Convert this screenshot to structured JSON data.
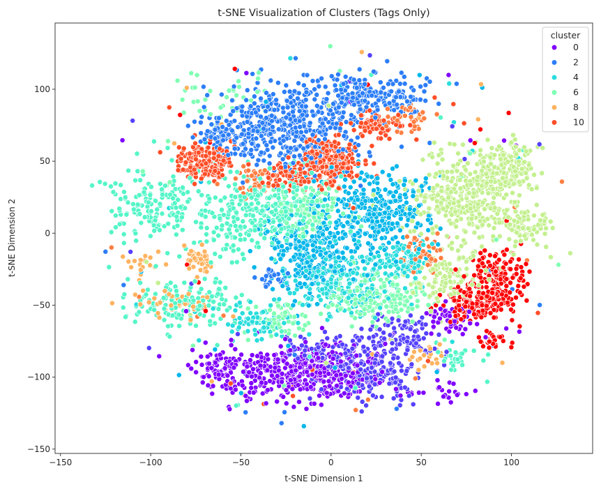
{
  "chart_data": {
    "type": "scatter",
    "title": "t-SNE Visualization of Clusters (Tags Only)",
    "xlabel": "t-SNE Dimension 1",
    "ylabel": "t-SNE Dimension 2",
    "xlim": [
      -153,
      145
    ],
    "ylim": [
      -153,
      146
    ],
    "xticks": [
      -150,
      -100,
      -50,
      0,
      50,
      100
    ],
    "yticks": [
      -150,
      -100,
      -50,
      0,
      50,
      100
    ],
    "grid": false,
    "legend": {
      "title": "cluster",
      "placement": "top-right",
      "entries": [
        {
          "label": "0",
          "color": "#8000ff"
        },
        {
          "label": "2",
          "color": "#2c7ef7"
        },
        {
          "label": "4",
          "color": "#2adddd"
        },
        {
          "label": "6",
          "color": "#80ffb4"
        },
        {
          "label": "8",
          "color": "#ffb360"
        },
        {
          "label": "10",
          "color": "#ff4e27"
        }
      ]
    },
    "palette": {
      "0": "#8000ff",
      "1": "#5641fd",
      "2": "#2c7ef7",
      "3": "#02b7eb",
      "4": "#2adddd",
      "5": "#55f5c8",
      "6": "#80ffb4",
      "7": "#c4f090",
      "8": "#ffb360",
      "9": "#ff7e41",
      "10": "#ff4e27",
      "11": "#ff0000"
    },
    "clusters": [
      {
        "cluster": "0",
        "regions": [
          {
            "cx": -25,
            "cy": -100,
            "rx": 32,
            "ry": 18,
            "n": 260
          },
          {
            "cx": 0,
            "cy": -95,
            "rx": 25,
            "ry": 16,
            "n": 160
          },
          {
            "cx": -60,
            "cy": -95,
            "rx": 16,
            "ry": 12,
            "n": 70
          },
          {
            "cx": 65,
            "cy": -60,
            "rx": 14,
            "ry": 12,
            "n": 50
          },
          {
            "cx": 60,
            "cy": -110,
            "rx": 20,
            "ry": 8,
            "n": 25
          }
        ]
      },
      {
        "cluster": "1",
        "regions": [
          {
            "cx": 20,
            "cy": -95,
            "rx": 25,
            "ry": 18,
            "n": 220
          },
          {
            "cx": 40,
            "cy": -70,
            "rx": 18,
            "ry": 14,
            "n": 100
          },
          {
            "cx": -10,
            "cy": -80,
            "rx": 15,
            "ry": 10,
            "n": 60
          }
        ]
      },
      {
        "cluster": "2",
        "regions": [
          {
            "cx": -25,
            "cy": 75,
            "rx": 35,
            "ry": 30,
            "n": 480
          },
          {
            "cx": 20,
            "cy": 95,
            "rx": 32,
            "ry": 15,
            "n": 220
          },
          {
            "cx": -60,
            "cy": 70,
            "rx": 15,
            "ry": 12,
            "n": 70
          },
          {
            "cx": -30,
            "cy": -30,
            "rx": 8,
            "ry": 6,
            "n": 25
          }
        ]
      },
      {
        "cluster": "3",
        "regions": [
          {
            "cx": 25,
            "cy": 15,
            "rx": 26,
            "ry": 25,
            "n": 360
          },
          {
            "cx": -10,
            "cy": -15,
            "rx": 25,
            "ry": 25,
            "n": 260
          }
        ]
      },
      {
        "cluster": "4",
        "regions": [
          {
            "cx": 5,
            "cy": -35,
            "rx": 26,
            "ry": 20,
            "n": 230
          },
          {
            "cx": 40,
            "cy": -20,
            "rx": 16,
            "ry": 12,
            "n": 90
          },
          {
            "cx": -40,
            "cy": -60,
            "rx": 15,
            "ry": 10,
            "n": 70
          }
        ]
      },
      {
        "cluster": "5",
        "regions": [
          {
            "cx": -100,
            "cy": 20,
            "rx": 22,
            "ry": 25,
            "n": 150
          },
          {
            "cx": -50,
            "cy": 10,
            "rx": 28,
            "ry": 25,
            "n": 210
          },
          {
            "cx": -80,
            "cy": -50,
            "rx": 28,
            "ry": 18,
            "n": 150
          },
          {
            "cx": -20,
            "cy": 20,
            "rx": 20,
            "ry": 22,
            "n": 120
          },
          {
            "cx": 70,
            "cy": -85,
            "rx": 12,
            "ry": 8,
            "n": 30
          }
        ]
      },
      {
        "cluster": "6",
        "regions": [
          {
            "cx": 25,
            "cy": -45,
            "rx": 25,
            "ry": 15,
            "n": 170
          },
          {
            "cx": -10,
            "cy": 15,
            "rx": 20,
            "ry": 18,
            "n": 110
          },
          {
            "cx": -25,
            "cy": -60,
            "rx": 15,
            "ry": 10,
            "n": 50
          },
          {
            "cx": -60,
            "cy": 95,
            "rx": 25,
            "ry": 20,
            "n": 40
          }
        ]
      },
      {
        "cluster": "7",
        "regions": [
          {
            "cx": 75,
            "cy": 25,
            "rx": 30,
            "ry": 28,
            "n": 350
          },
          {
            "cx": 95,
            "cy": 45,
            "rx": 18,
            "ry": 18,
            "n": 160
          },
          {
            "cx": 105,
            "cy": 5,
            "rx": 15,
            "ry": 12,
            "n": 80
          },
          {
            "cx": 65,
            "cy": -30,
            "rx": 20,
            "ry": 16,
            "n": 120
          }
        ]
      },
      {
        "cluster": "8",
        "regions": [
          {
            "cx": -73,
            "cy": -18,
            "rx": 8,
            "ry": 9,
            "n": 45
          },
          {
            "cx": -85,
            "cy": -48,
            "rx": 20,
            "ry": 10,
            "n": 40
          },
          {
            "cx": 52,
            "cy": -85,
            "rx": 8,
            "ry": 6,
            "n": 22
          },
          {
            "cx": -105,
            "cy": -20,
            "rx": 8,
            "ry": 8,
            "n": 18
          }
        ]
      },
      {
        "cluster": "9",
        "regions": [
          {
            "cx": 50,
            "cy": -15,
            "rx": 10,
            "ry": 12,
            "n": 50
          },
          {
            "cx": -45,
            "cy": 35,
            "rx": 12,
            "ry": 10,
            "n": 40
          },
          {
            "cx": 40,
            "cy": 80,
            "rx": 15,
            "ry": 10,
            "n": 40
          }
        ]
      },
      {
        "cluster": "10",
        "regions": [
          {
            "cx": -70,
            "cy": 50,
            "rx": 15,
            "ry": 12,
            "n": 170
          },
          {
            "cx": 0,
            "cy": 50,
            "rx": 16,
            "ry": 16,
            "n": 220
          },
          {
            "cx": -25,
            "cy": 40,
            "rx": 14,
            "ry": 10,
            "n": 70
          },
          {
            "cx": 25,
            "cy": 75,
            "rx": 15,
            "ry": 10,
            "n": 60
          }
        ]
      },
      {
        "cluster": "11",
        "regions": [
          {
            "cx": 90,
            "cy": -35,
            "rx": 15,
            "ry": 22,
            "n": 220
          },
          {
            "cx": 75,
            "cy": -50,
            "rx": 12,
            "ry": 10,
            "n": 80
          },
          {
            "cx": 90,
            "cy": -75,
            "rx": 8,
            "ry": 5,
            "n": 25
          }
        ]
      }
    ]
  }
}
